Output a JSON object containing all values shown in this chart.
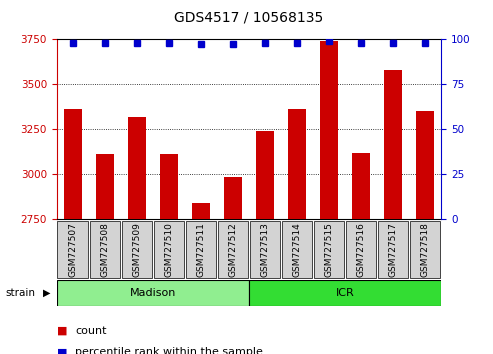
{
  "title": "GDS4517 / 10568135",
  "categories": [
    "GSM727507",
    "GSM727508",
    "GSM727509",
    "GSM727510",
    "GSM727511",
    "GSM727512",
    "GSM727513",
    "GSM727514",
    "GSM727515",
    "GSM727516",
    "GSM727517",
    "GSM727518"
  ],
  "counts": [
    3360,
    3110,
    3320,
    3110,
    2840,
    2985,
    3240,
    3360,
    3740,
    3120,
    3580,
    3350
  ],
  "percentiles": [
    98,
    98,
    98,
    98,
    97,
    97,
    98,
    98,
    99,
    98,
    98,
    98
  ],
  "ymin": 2750,
  "ymax": 3750,
  "yticks": [
    2750,
    3000,
    3250,
    3500,
    3750
  ],
  "right_yticks": [
    0,
    25,
    50,
    75,
    100
  ],
  "bar_color": "#cc0000",
  "dot_color": "#0000cc",
  "group1_label": "Madison",
  "group2_label": "ICR",
  "group1_color": "#90ee90",
  "group2_color": "#33dd33",
  "strain_label": "strain",
  "legend_count_label": "count",
  "legend_pct_label": "percentile rank within the sample",
  "left_axis_color": "#cc0000",
  "right_axis_color": "#0000cc",
  "title_color": "#000000",
  "title_fontsize": 10,
  "tick_label_fontsize": 6.5,
  "group_label_fontsize": 8,
  "legend_fontsize": 8
}
